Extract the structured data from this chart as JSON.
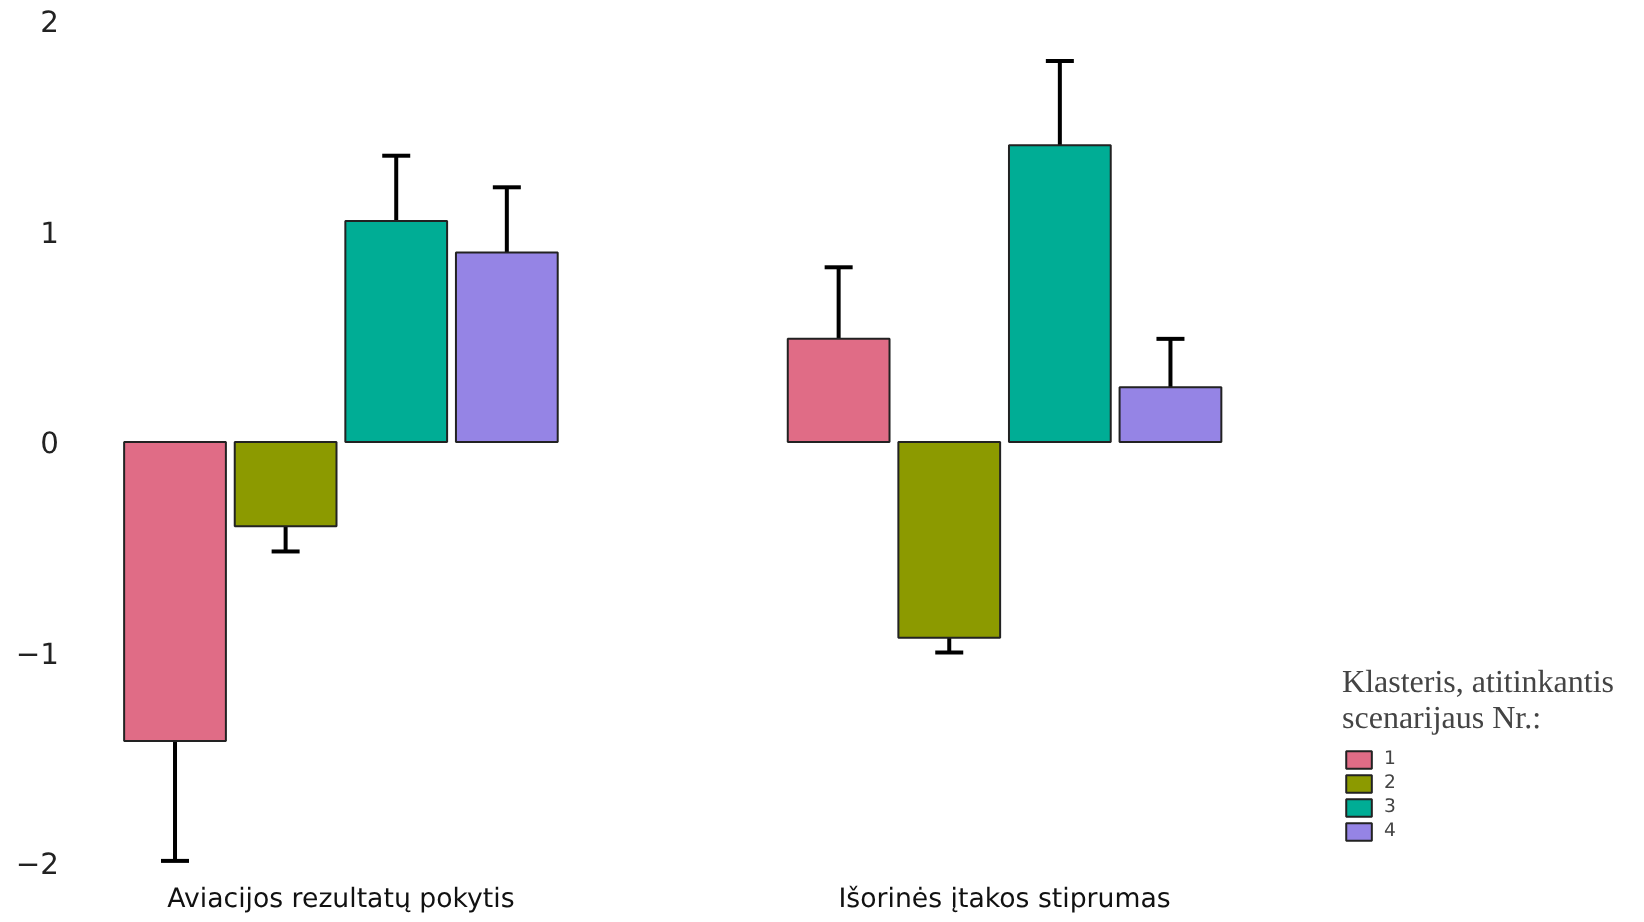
{
  "chart_data": {
    "type": "bar",
    "categories": [
      "Aviacijos rezultatų pokytis",
      "Išorinės įtakos stiprumas"
    ],
    "series": [
      {
        "name": "1",
        "color": "#e06c86",
        "values": [
          -1.42,
          0.49
        ],
        "errors": [
          0.57,
          0.34
        ]
      },
      {
        "name": "2",
        "color": "#8c9a00",
        "values": [
          -0.4,
          -0.93
        ],
        "errors": [
          0.12,
          0.07
        ]
      },
      {
        "name": "3",
        "color": "#00ad95",
        "values": [
          1.05,
          1.41
        ],
        "errors": [
          0.31,
          0.4
        ]
      },
      {
        "name": "4",
        "color": "#9584e5",
        "values": [
          0.9,
          0.26
        ],
        "errors": [
          0.31,
          0.23
        ]
      }
    ],
    "ylim": [
      -2,
      2
    ],
    "yticks": [
      -2,
      -1,
      0,
      1,
      2
    ],
    "grid": false,
    "legend": "bottom right",
    "legend_title": "Klasteris, atitinkantis scenarijaus Nr.:"
  }
}
